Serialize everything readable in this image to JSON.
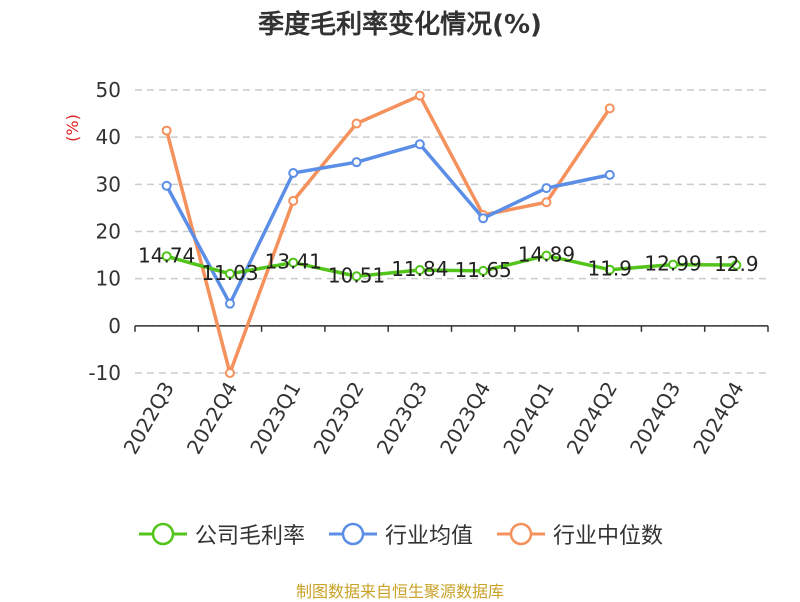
{
  "chart_data": {
    "type": "line",
    "title": "季度毛利率变化情况(%)",
    "ylabel": "(%)",
    "categories": [
      "2022Q3",
      "2022Q4",
      "2023Q1",
      "2023Q2",
      "2023Q3",
      "2023Q4",
      "2024Q1",
      "2024Q2",
      "2024Q3",
      "2024Q4"
    ],
    "ylim": [
      -10,
      50
    ],
    "yticks": [
      -10,
      0,
      10,
      20,
      30,
      40,
      50
    ],
    "grid": true,
    "legend_position": "bottom",
    "series": [
      {
        "name": "公司毛利率",
        "color": "#52c41a",
        "values": [
          14.74,
          11.03,
          13.41,
          10.51,
          11.84,
          11.65,
          14.89,
          11.9,
          12.99,
          12.9
        ],
        "labels": [
          "14.74",
          "11.03",
          "13.41",
          "10.51",
          "11.84",
          "11.65",
          "14.89",
          "11.9",
          "12.99",
          "12.9"
        ]
      },
      {
        "name": "行业均值",
        "color": "#5b8ee6",
        "values": [
          29.7,
          4.7,
          32.4,
          34.7,
          38.5,
          22.8,
          29.2,
          32.0,
          null,
          null
        ]
      },
      {
        "name": "行业中位数",
        "color": "#f5915c",
        "values": [
          41.4,
          -10.0,
          26.5,
          42.9,
          48.8,
          23.5,
          26.2,
          46.1,
          null,
          null
        ]
      }
    ]
  },
  "source": "制图数据来自恒生聚源数据库"
}
